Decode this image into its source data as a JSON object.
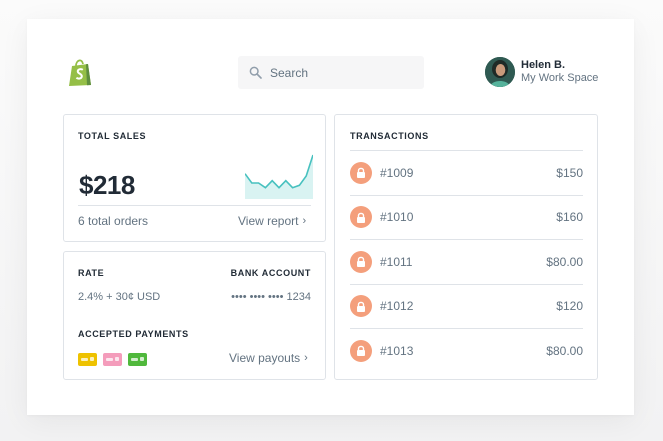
{
  "header": {
    "logo": "shopify-bag-logo",
    "search": {
      "placeholder": "Search",
      "icon": "search-icon"
    },
    "user": {
      "name": "Helen B.",
      "workspace": "My Work Space"
    }
  },
  "sales": {
    "heading": "TOTAL SALES",
    "amount": "$218",
    "orders": "6 total orders",
    "link": "View report",
    "sparkline": [
      10,
      6,
      6,
      4,
      7,
      4,
      7,
      4,
      5,
      9,
      18
    ],
    "accent": "#47c1bf"
  },
  "payments": {
    "rate_heading": "RATE",
    "rate_value": "2.4% + 30¢ USD",
    "bank_heading": "BANK ACCOUNT",
    "bank_value": "•••• •••• •••• 1234",
    "accepted_heading": "ACCEPTED PAYMENTS",
    "link": "View payouts",
    "card_colors": [
      "#eec200",
      "#f49cbb",
      "#50b83c"
    ]
  },
  "transactions": {
    "heading": "TRANSACTIONS",
    "rows": [
      {
        "id": "#1009",
        "amount": "$150"
      },
      {
        "id": "#1010",
        "amount": "$160"
      },
      {
        "id": "#1011",
        "amount": "$80.00"
      },
      {
        "id": "#1012",
        "amount": "$120"
      },
      {
        "id": "#1013",
        "amount": "$80.00"
      }
    ],
    "icon": "lock-icon",
    "icon_color": "#f49f7c"
  }
}
